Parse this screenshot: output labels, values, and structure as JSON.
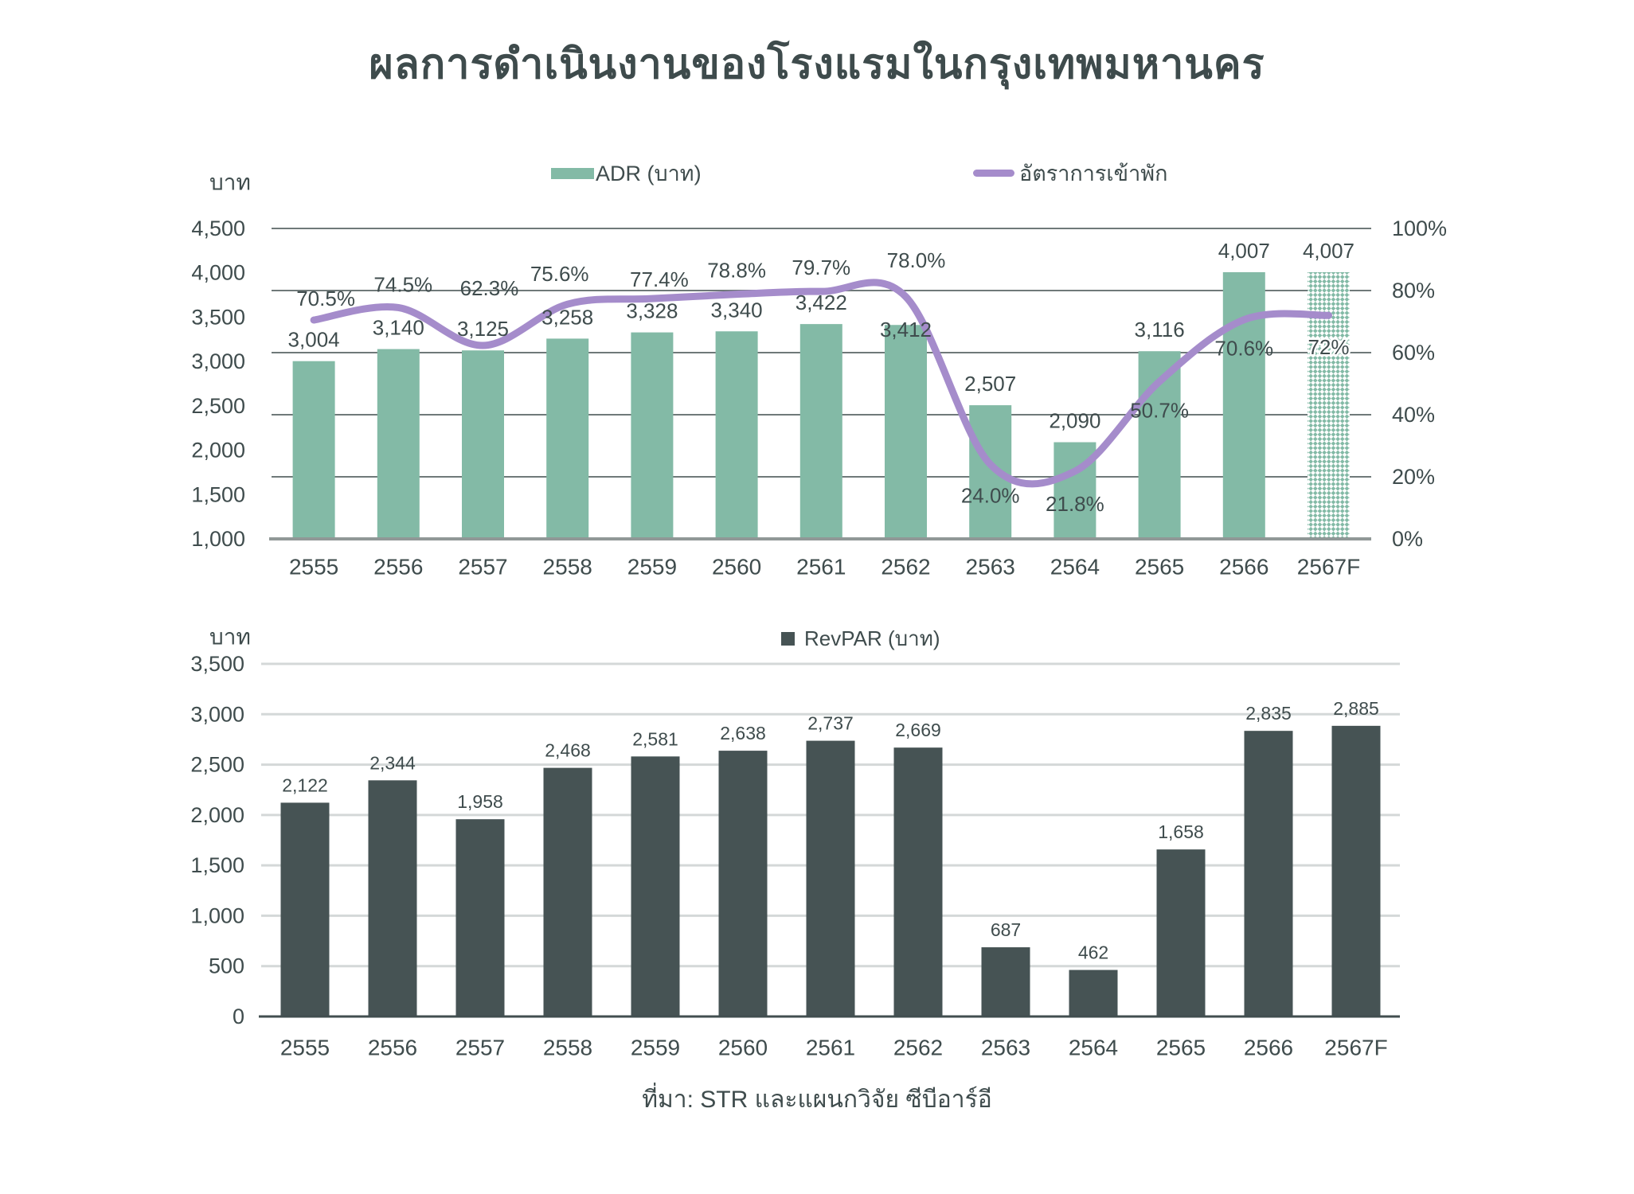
{
  "title": "ผลการดำเนินงานของโรงแรมในกรุงเทพมหานคร",
  "source": "ที่มา:  STR และแผนกวิจัย ซีบีอาร์อี",
  "colors": {
    "bar_green": "#83BAA6",
    "line_purple": "#A58CCB",
    "bar_dark": "#465354",
    "text_dark": "#3F4C4D",
    "grid_dark": "#6F7979",
    "grid_light": "#D4D8D8",
    "axis_gray": "#909897",
    "baseline_dark": "#414E4F"
  },
  "chart_data": [
    {
      "type": "bar",
      "subtype": "bar + line combo, last category is a hatched forecast bar",
      "categories": [
        "2555",
        "2556",
        "2557",
        "2558",
        "2559",
        "2560",
        "2561",
        "2562",
        "2563",
        "2564",
        "2565",
        "2566",
        "2567F"
      ],
      "series": [
        {
          "name": "ADR (บาท)",
          "type": "bar",
          "axis": "left",
          "values": [
            3004,
            3140,
            3125,
            3258,
            3328,
            3340,
            3422,
            3412,
            2507,
            2090,
            3116,
            4007,
            4007
          ],
          "labels": [
            "3,004",
            "3,140",
            "3,125",
            "3,258",
            "3,328",
            "3,340",
            "3,422",
            "3,412",
            "2,507",
            "2,090",
            "3,116",
            "4,007",
            "4,007"
          ],
          "last_bar_is_forecast_hatched": true
        },
        {
          "name": "อัตราการเข้าพัก",
          "type": "line",
          "axis": "right",
          "values": [
            70.5,
            74.5,
            62.3,
            75.6,
            77.4,
            78.8,
            79.7,
            78.0,
            24.0,
            21.8,
            50.7,
            70.6,
            72
          ],
          "labels": [
            "70.5%",
            "74.5%",
            "62.3%",
            "75.6%",
            "77.4%",
            "78.8%",
            "79.7%",
            "78.0%",
            "24.0%",
            "21.8%",
            "50.7%",
            "70.6%",
            "72%"
          ]
        }
      ],
      "left_axis": {
        "unit": "บาท",
        "min": 1000,
        "max": 4500,
        "ticks": [
          "4,500",
          "4,000",
          "3,500",
          "3,000",
          "2,500",
          "2,000",
          "1,500",
          "1,000"
        ]
      },
      "right_axis": {
        "min": 0,
        "max": 100,
        "ticks": [
          "100%",
          "80%",
          "60%",
          "40%",
          "20%",
          "0%"
        ]
      },
      "legend_position": "top",
      "grid": "horizontal lines at right-axis 20% steps"
    },
    {
      "type": "bar",
      "categories": [
        "2555",
        "2556",
        "2557",
        "2558",
        "2559",
        "2560",
        "2561",
        "2562",
        "2563",
        "2564",
        "2565",
        "2566",
        "2567F"
      ],
      "series": [
        {
          "name": "RevPAR (บาท)",
          "type": "bar",
          "axis": "left",
          "values": [
            2122,
            2344,
            1958,
            2468,
            2581,
            2638,
            2737,
            2669,
            687,
            462,
            1658,
            2835,
            2885
          ],
          "labels": [
            "2,122",
            "2,344",
            "1,958",
            "2,468",
            "2,581",
            "2,638",
            "2,737",
            "2,669",
            "687",
            "462",
            "1,658",
            "2,835",
            "2,885"
          ]
        }
      ],
      "left_axis": {
        "unit": "บาท",
        "min": 0,
        "max": 3500,
        "ticks": [
          "3,500",
          "3,000",
          "2,500",
          "2,000",
          "1,500",
          "1,000",
          "500",
          "0"
        ]
      },
      "legend_position": "top",
      "grid": "horizontal lines every 500"
    }
  ]
}
